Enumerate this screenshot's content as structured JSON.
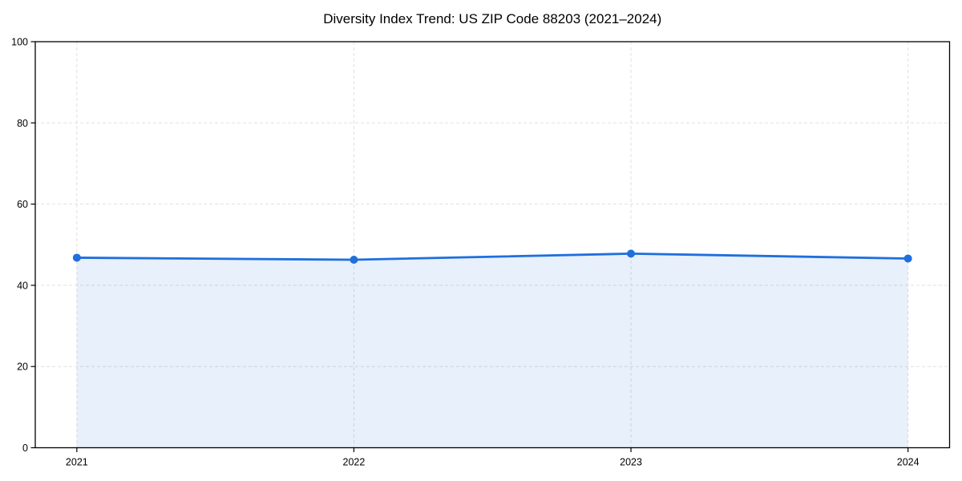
{
  "chart_data": {
    "type": "area",
    "title": "Diversity Index Trend: US ZIP Code 88203 (2021–2024)",
    "x": [
      "2021",
      "2022",
      "2023",
      "2024"
    ],
    "series": [
      {
        "name": "Diversity Index",
        "values": [
          46.8,
          46.3,
          47.8,
          46.6
        ]
      }
    ],
    "xlabel": "",
    "ylabel": "",
    "ylim": [
      0,
      100
    ],
    "yticks": [
      0,
      20,
      40,
      60,
      80,
      100
    ],
    "grid": true,
    "grid_style": "dashed",
    "legend_position": "none",
    "line_color": "#1f6fdd",
    "marker_color": "#1f6fdd",
    "fill_color": "#1f6fdd",
    "fill_opacity": 0.1,
    "grid_color": "#e0e0e0",
    "axis_color": "#000000",
    "background_color": "#ffffff"
  }
}
